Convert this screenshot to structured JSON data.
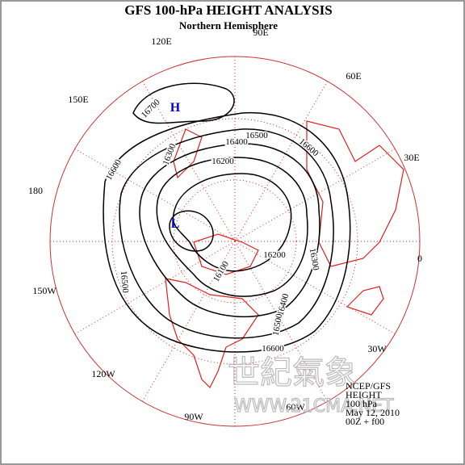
{
  "header": {
    "title": "GFS 100-hPa HEIGHT ANALYSIS",
    "subtitle": "Northern Hemisphere"
  },
  "longitudes": [
    "90E",
    "60E",
    "30E",
    "0",
    "30W",
    "60W",
    "90W",
    "120W",
    "150W",
    "180",
    "150E",
    "120E"
  ],
  "contour_labels": [
    "16700",
    "16500",
    "16400",
    "16600",
    "16300",
    "16200",
    "16600",
    "16300",
    "16200",
    "16100",
    "16500",
    "16400",
    "16500",
    "16600"
  ],
  "centers": {
    "high": "H",
    "low": "L"
  },
  "info": [
    "NCEP/GFS",
    "HEIGHT",
    "100 hPa",
    "May 12, 2010",
    "00Z + f00"
  ],
  "watermark": {
    "chinese": "世紀氣象",
    "url": "WWW.21CMA.NET"
  }
}
